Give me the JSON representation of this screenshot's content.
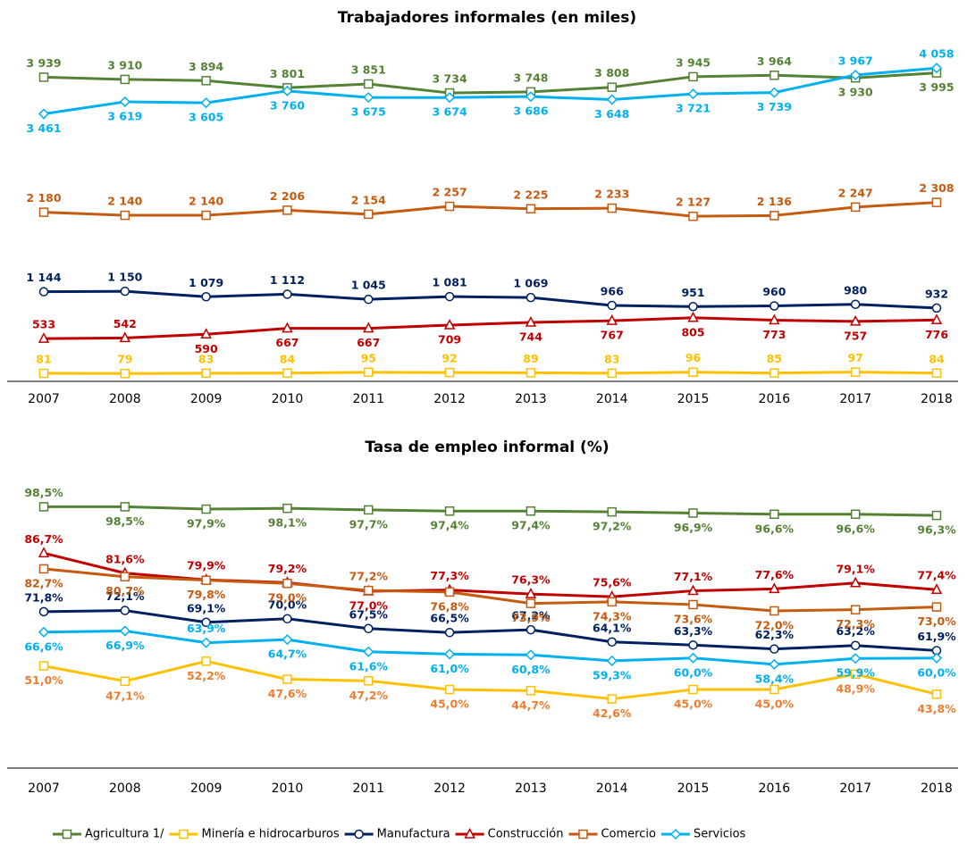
{
  "chart_data": [
    {
      "type": "line",
      "title": "Trabajadores informales (en miles)",
      "categories": [
        "2007",
        "2008",
        "2009",
        "2010",
        "2011",
        "2012",
        "2013",
        "2014",
        "2015",
        "2016",
        "2017",
        "2018"
      ],
      "ylim": [
        0,
        4200
      ],
      "series": [
        {
          "color": "#548235",
          "marker": "square",
          "values": [
            3939,
            3910,
            3894,
            3801,
            3851,
            3734,
            3748,
            3808,
            3945,
            3964,
            3930,
            3995
          ],
          "value_labels": [
            "3 939",
            "3 910",
            "3 894",
            "3 801",
            "3 851",
            "3 734",
            "3 748",
            "3 808",
            "3 945",
            "3 964",
            "3 930",
            "3 995"
          ]
        },
        {
          "color": "#ffc000",
          "marker": "square",
          "values": [
            81,
            79,
            83,
            84,
            95,
            92,
            89,
            83,
            96,
            85,
            97,
            84
          ]
        },
        {
          "color": "#002060",
          "marker": "circle",
          "values": [
            1144,
            1150,
            1079,
            1112,
            1045,
            1081,
            1069,
            966,
            951,
            960,
            980,
            932
          ],
          "value_labels": [
            "1 144",
            "1 150",
            "1 079",
            "1 112",
            "1 045",
            "1 081",
            "1 069",
            "966",
            "951",
            "960",
            "980",
            "932"
          ]
        },
        {
          "color": "#c00000",
          "marker": "triangle",
          "values": [
            533,
            542,
            590,
            667,
            667,
            709,
            744,
            767,
            805,
            773,
            757,
            776
          ]
        },
        {
          "color": "#c55a11",
          "marker": "square",
          "values": [
            2180,
            2140,
            2140,
            2206,
            2154,
            2257,
            2225,
            2233,
            2127,
            2136,
            2247,
            2308
          ],
          "value_labels": [
            "2 180",
            "2 140",
            "2 140",
            "2 206",
            "2 154",
            "2 257",
            "2 225",
            "2 233",
            "2 127",
            "2 136",
            "2 247",
            "2 308"
          ]
        },
        {
          "color": "#00b0f0",
          "marker": "diamond",
          "values": [
            3461,
            3619,
            3605,
            3760,
            3675,
            3674,
            3686,
            3648,
            3721,
            3739,
            3967,
            4058
          ],
          "value_labels": [
            "3 461",
            "3 619",
            "3 605",
            "3 760",
            "3 675",
            "3 674",
            "3 686",
            "3 648",
            "3 721",
            "3 739",
            "3 967",
            "4 058"
          ]
        }
      ]
    },
    {
      "type": "line",
      "title": "Tasa de empleo informal (%)",
      "categories": [
        "2007",
        "2008",
        "2009",
        "2010",
        "2011",
        "2012",
        "2013",
        "2014",
        "2015",
        "2016",
        "2017",
        "2018"
      ],
      "ylim": [
        32,
        102
      ],
      "y2lim": [
        25,
        95
      ],
      "series": [
        {
          "name": "Agricultura 1/",
          "color": "#548235",
          "marker": "square",
          "values": [
            98.5,
            98.5,
            97.9,
            98.1,
            97.7,
            97.4,
            97.4,
            97.2,
            96.9,
            96.6,
            96.6,
            96.3
          ],
          "value_labels": [
            "98,5%",
            "98,5%",
            "97,9%",
            "98,1%",
            "97,7%",
            "97,4%",
            "97,4%",
            "97,2%",
            "96,9%",
            "96,6%",
            "96,6%",
            "96,3%"
          ]
        },
        {
          "name": "Minería e hidrocarburos",
          "color": "#ffc000",
          "label_color": "#ed7d31",
          "marker": "square",
          "axis": "y2",
          "values": [
            51.0,
            47.1,
            52.2,
            47.6,
            47.2,
            45.0,
            44.7,
            42.6,
            45.0,
            45.0,
            48.9,
            43.8
          ],
          "value_labels": [
            "51,0%",
            "47,1%",
            "52,2%",
            "47,6%",
            "47,2%",
            "45,0%",
            "44,7%",
            "42,6%",
            "45,0%",
            "45,0%",
            "48,9%",
            "43,8%"
          ]
        },
        {
          "name": "Manufactura",
          "color": "#002060",
          "marker": "circle",
          "values": [
            71.8,
            72.1,
            69.1,
            70.0,
            67.5,
            66.5,
            67.2,
            64.1,
            63.3,
            62.3,
            63.2,
            61.9
          ],
          "value_labels": [
            "71,8%",
            "72,1%",
            "69,1%",
            "70,0%",
            "67,5%",
            "66,5%",
            "67,2%",
            "64,1%",
            "63,3%",
            "62,3%",
            "63,2%",
            "61,9%"
          ]
        },
        {
          "name": "Construcción",
          "color": "#c00000",
          "marker": "triangle",
          "values": [
            86.7,
            81.6,
            79.9,
            79.2,
            77.0,
            77.3,
            76.3,
            75.6,
            77.1,
            77.6,
            79.1,
            77.4
          ],
          "value_labels": [
            "86,7%",
            "81,6%",
            "79,9%",
            "79,2%",
            "77,0%",
            "77,3%",
            "76,3%",
            "75,6%",
            "77,1%",
            "77,6%",
            "79,1%",
            "77,4%"
          ]
        },
        {
          "name": "Comercio",
          "color": "#c55a11",
          "marker": "square",
          "values": [
            82.7,
            80.7,
            79.8,
            79.0,
            77.2,
            76.8,
            73.9,
            74.3,
            73.6,
            72.0,
            72.3,
            73.0
          ],
          "value_labels": [
            "82,7%",
            "80,7%",
            "79,8%",
            "79,0%",
            "77,2%",
            "76,8%",
            "73,9%",
            "74,3%",
            "73,6%",
            "72,0%",
            "72,3%",
            "73,0%"
          ]
        },
        {
          "name": "Servicios",
          "color": "#00b0f0",
          "marker": "diamond",
          "values": [
            66.6,
            66.9,
            63.9,
            64.7,
            61.6,
            61.0,
            60.8,
            59.3,
            60.0,
            58.4,
            59.9,
            60.0
          ],
          "value_labels": [
            "66,6%",
            "66,9%",
            "63,9%",
            "64,7%",
            "61,6%",
            "61,0%",
            "60,8%",
            "59,3%",
            "60,0%",
            "58,4%",
            "59,9%",
            "60,0%"
          ]
        }
      ]
    }
  ]
}
